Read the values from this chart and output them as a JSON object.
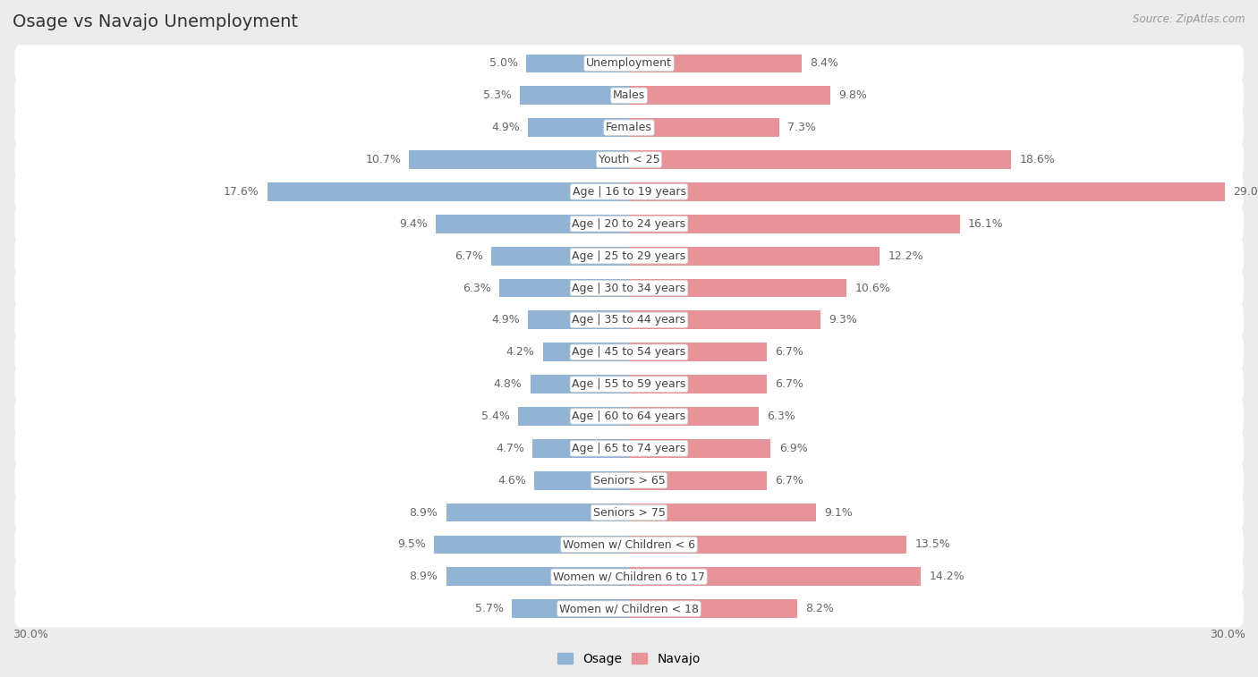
{
  "title": "Osage vs Navajo Unemployment",
  "source": "Source: ZipAtlas.com",
  "categories": [
    "Unemployment",
    "Males",
    "Females",
    "Youth < 25",
    "Age | 16 to 19 years",
    "Age | 20 to 24 years",
    "Age | 25 to 29 years",
    "Age | 30 to 34 years",
    "Age | 35 to 44 years",
    "Age | 45 to 54 years",
    "Age | 55 to 59 years",
    "Age | 60 to 64 years",
    "Age | 65 to 74 years",
    "Seniors > 65",
    "Seniors > 75",
    "Women w/ Children < 6",
    "Women w/ Children 6 to 17",
    "Women w/ Children < 18"
  ],
  "osage_values": [
    5.0,
    5.3,
    4.9,
    10.7,
    17.6,
    9.4,
    6.7,
    6.3,
    4.9,
    4.2,
    4.8,
    5.4,
    4.7,
    4.6,
    8.9,
    9.5,
    8.9,
    5.7
  ],
  "navajo_values": [
    8.4,
    9.8,
    7.3,
    18.6,
    29.0,
    16.1,
    12.2,
    10.6,
    9.3,
    6.7,
    6.7,
    6.3,
    6.9,
    6.7,
    9.1,
    13.5,
    14.2,
    8.2
  ],
  "osage_color": "#92b4d4",
  "navajo_color": "#e8929a",
  "background_color": "#ececec",
  "row_bg_color": "#ffffff",
  "axis_max": 30.0,
  "bar_height": 0.58,
  "title_fontsize": 14,
  "label_fontsize": 9,
  "cat_fontsize": 9,
  "tick_fontsize": 9,
  "legend_fontsize": 10
}
